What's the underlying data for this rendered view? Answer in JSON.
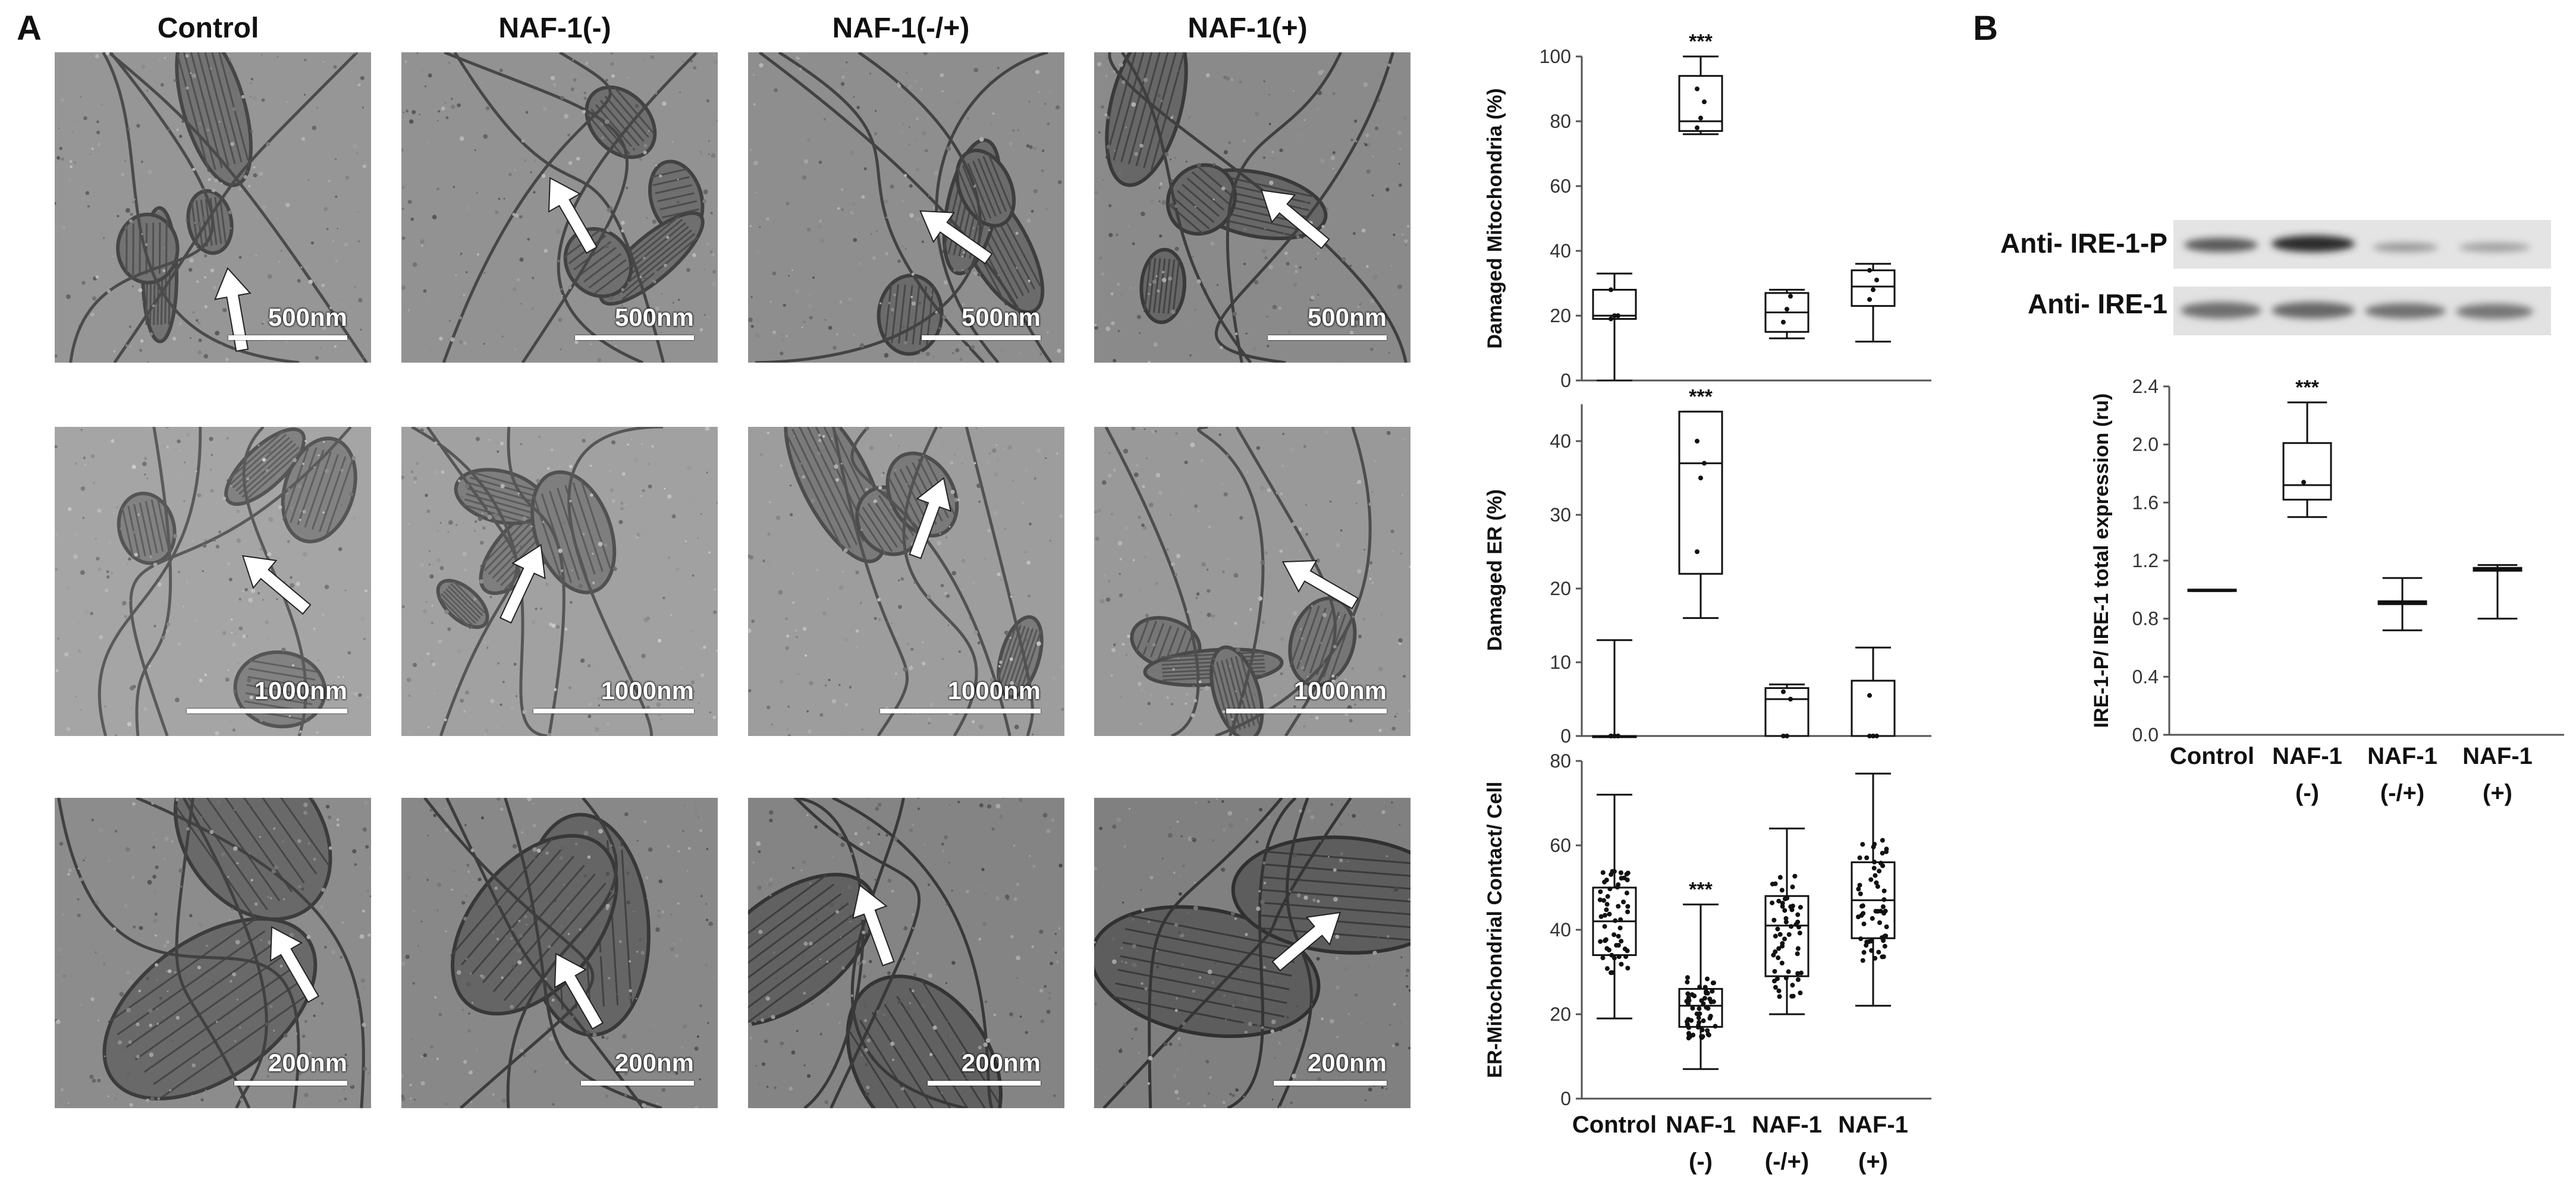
{
  "panel_a": {
    "letter": "A",
    "columns": [
      "Control",
      "NAF-1(-)",
      "NAF-1(-/+)",
      "NAF-1(+)"
    ],
    "rows": [
      {
        "scale_labels": [
          "500nm",
          "500nm",
          "500nm",
          "500nm"
        ]
      },
      {
        "scale_labels": [
          "1000nm",
          "1000nm",
          "1000nm",
          "1000nm"
        ]
      },
      {
        "scale_labels": [
          "200nm",
          "200nm",
          "200nm",
          "200nm"
        ]
      }
    ]
  },
  "panel_b": {
    "letter": "B",
    "blot_labels": [
      "Anti- IRE-1-P",
      "Anti- IRE-1"
    ]
  },
  "chart_data": [
    {
      "type": "box",
      "ylabel": "Damaged Mitochondria (%)",
      "ylim": [
        0,
        100
      ],
      "yticks": [
        0,
        20,
        40,
        60,
        80,
        100
      ],
      "categories": [
        "Control",
        "NAF-1(-)",
        "NAF-1(-/+)",
        "NAF-1(+)"
      ],
      "boxes": [
        {
          "min": 0,
          "q1": 19,
          "median": 20,
          "q3": 28,
          "max": 33,
          "points": [
            19,
            20,
            20,
            28
          ]
        },
        {
          "min": 76,
          "q1": 77,
          "median": 80,
          "q3": 94,
          "max": 100,
          "points": [
            78,
            81,
            86,
            90
          ]
        },
        {
          "min": 13,
          "q1": 15,
          "median": 21,
          "q3": 27,
          "max": 28,
          "points": [
            18,
            22,
            26
          ]
        },
        {
          "min": 12,
          "q1": 23,
          "median": 29,
          "q3": 34,
          "max": 36,
          "points": [
            25,
            28,
            31,
            34
          ]
        }
      ],
      "annotations": [
        {
          "category": "NAF-1(-)",
          "text": "***"
        }
      ]
    },
    {
      "type": "box",
      "ylabel": "Damaged ER (%)",
      "ylim": [
        0,
        45
      ],
      "yticks": [
        0,
        10,
        20,
        30,
        40
      ],
      "categories": [
        "Control",
        "NAF-1(-)",
        "NAF-1(-/+)",
        "NAF-1(+)"
      ],
      "boxes": [
        {
          "min": 0,
          "q1": 0,
          "median": 0,
          "q3": 0,
          "max": 13,
          "points": [
            0,
            0,
            0,
            0,
            0,
            0
          ]
        },
        {
          "min": 16,
          "q1": 22,
          "median": 37,
          "q3": 44,
          "max": 44,
          "points": [
            25,
            35,
            37,
            40
          ]
        },
        {
          "min": 0,
          "q1": 0,
          "median": 5,
          "q3": 6.5,
          "max": 7,
          "points": [
            0,
            0,
            5,
            6
          ]
        },
        {
          "min": 0,
          "q1": 0,
          "median": 0,
          "q3": 7.5,
          "max": 12,
          "points": [
            0,
            0,
            0,
            5.5
          ]
        }
      ],
      "annotations": [
        {
          "category": "NAF-1(-)",
          "text": "***"
        }
      ]
    },
    {
      "type": "box",
      "ylabel": "ER-Mitochondrial Contact/ Cell",
      "ylim": [
        0,
        80
      ],
      "yticks": [
        0,
        20,
        40,
        60,
        80
      ],
      "categories": [
        "Control",
        "NAF-1\n(-)",
        "NAF-1\n(-/+)",
        "NAF-1\n(+)"
      ],
      "boxes": [
        {
          "min": 19,
          "q1": 34,
          "median": 42,
          "q3": 50,
          "max": 72
        },
        {
          "min": 7,
          "q1": 17,
          "median": 22,
          "q3": 26,
          "max": 46
        },
        {
          "min": 20,
          "q1": 29,
          "median": 41,
          "q3": 48,
          "max": 64
        },
        {
          "min": 22,
          "q1": 38,
          "median": 47,
          "q3": 56,
          "max": 77
        }
      ],
      "annotations": [
        {
          "category": "NAF-1\n(-)",
          "text": "***"
        }
      ]
    },
    {
      "type": "box",
      "ylabel": "IRE-1-P/ IRE-1 total expression (ru)",
      "ylim": [
        0,
        2.4
      ],
      "yticks": [
        "0.0",
        "0.4",
        "0.8",
        "1.2",
        "1.6",
        "2.0",
        "2.4"
      ],
      "categories": [
        "Control",
        "NAF-1\n(-)",
        "NAF-1\n(-/+)",
        "NAF-1\n(+)"
      ],
      "boxes": [
        {
          "min": 0.99,
          "q1": 0.99,
          "median": 1.0,
          "q3": 1.0,
          "max": 1.0
        },
        {
          "min": 1.5,
          "q1": 1.62,
          "median": 1.72,
          "q3": 2.01,
          "max": 2.29,
          "points": [
            1.74
          ]
        },
        {
          "min": 0.72,
          "q1": 0.9,
          "median": 0.91,
          "q3": 0.92,
          "max": 1.08
        },
        {
          "min": 0.8,
          "q1": 1.13,
          "median": 1.14,
          "q3": 1.15,
          "max": 1.17
        }
      ],
      "annotations": [
        {
          "category": "NAF-1\n(-)",
          "text": "***"
        }
      ]
    }
  ]
}
